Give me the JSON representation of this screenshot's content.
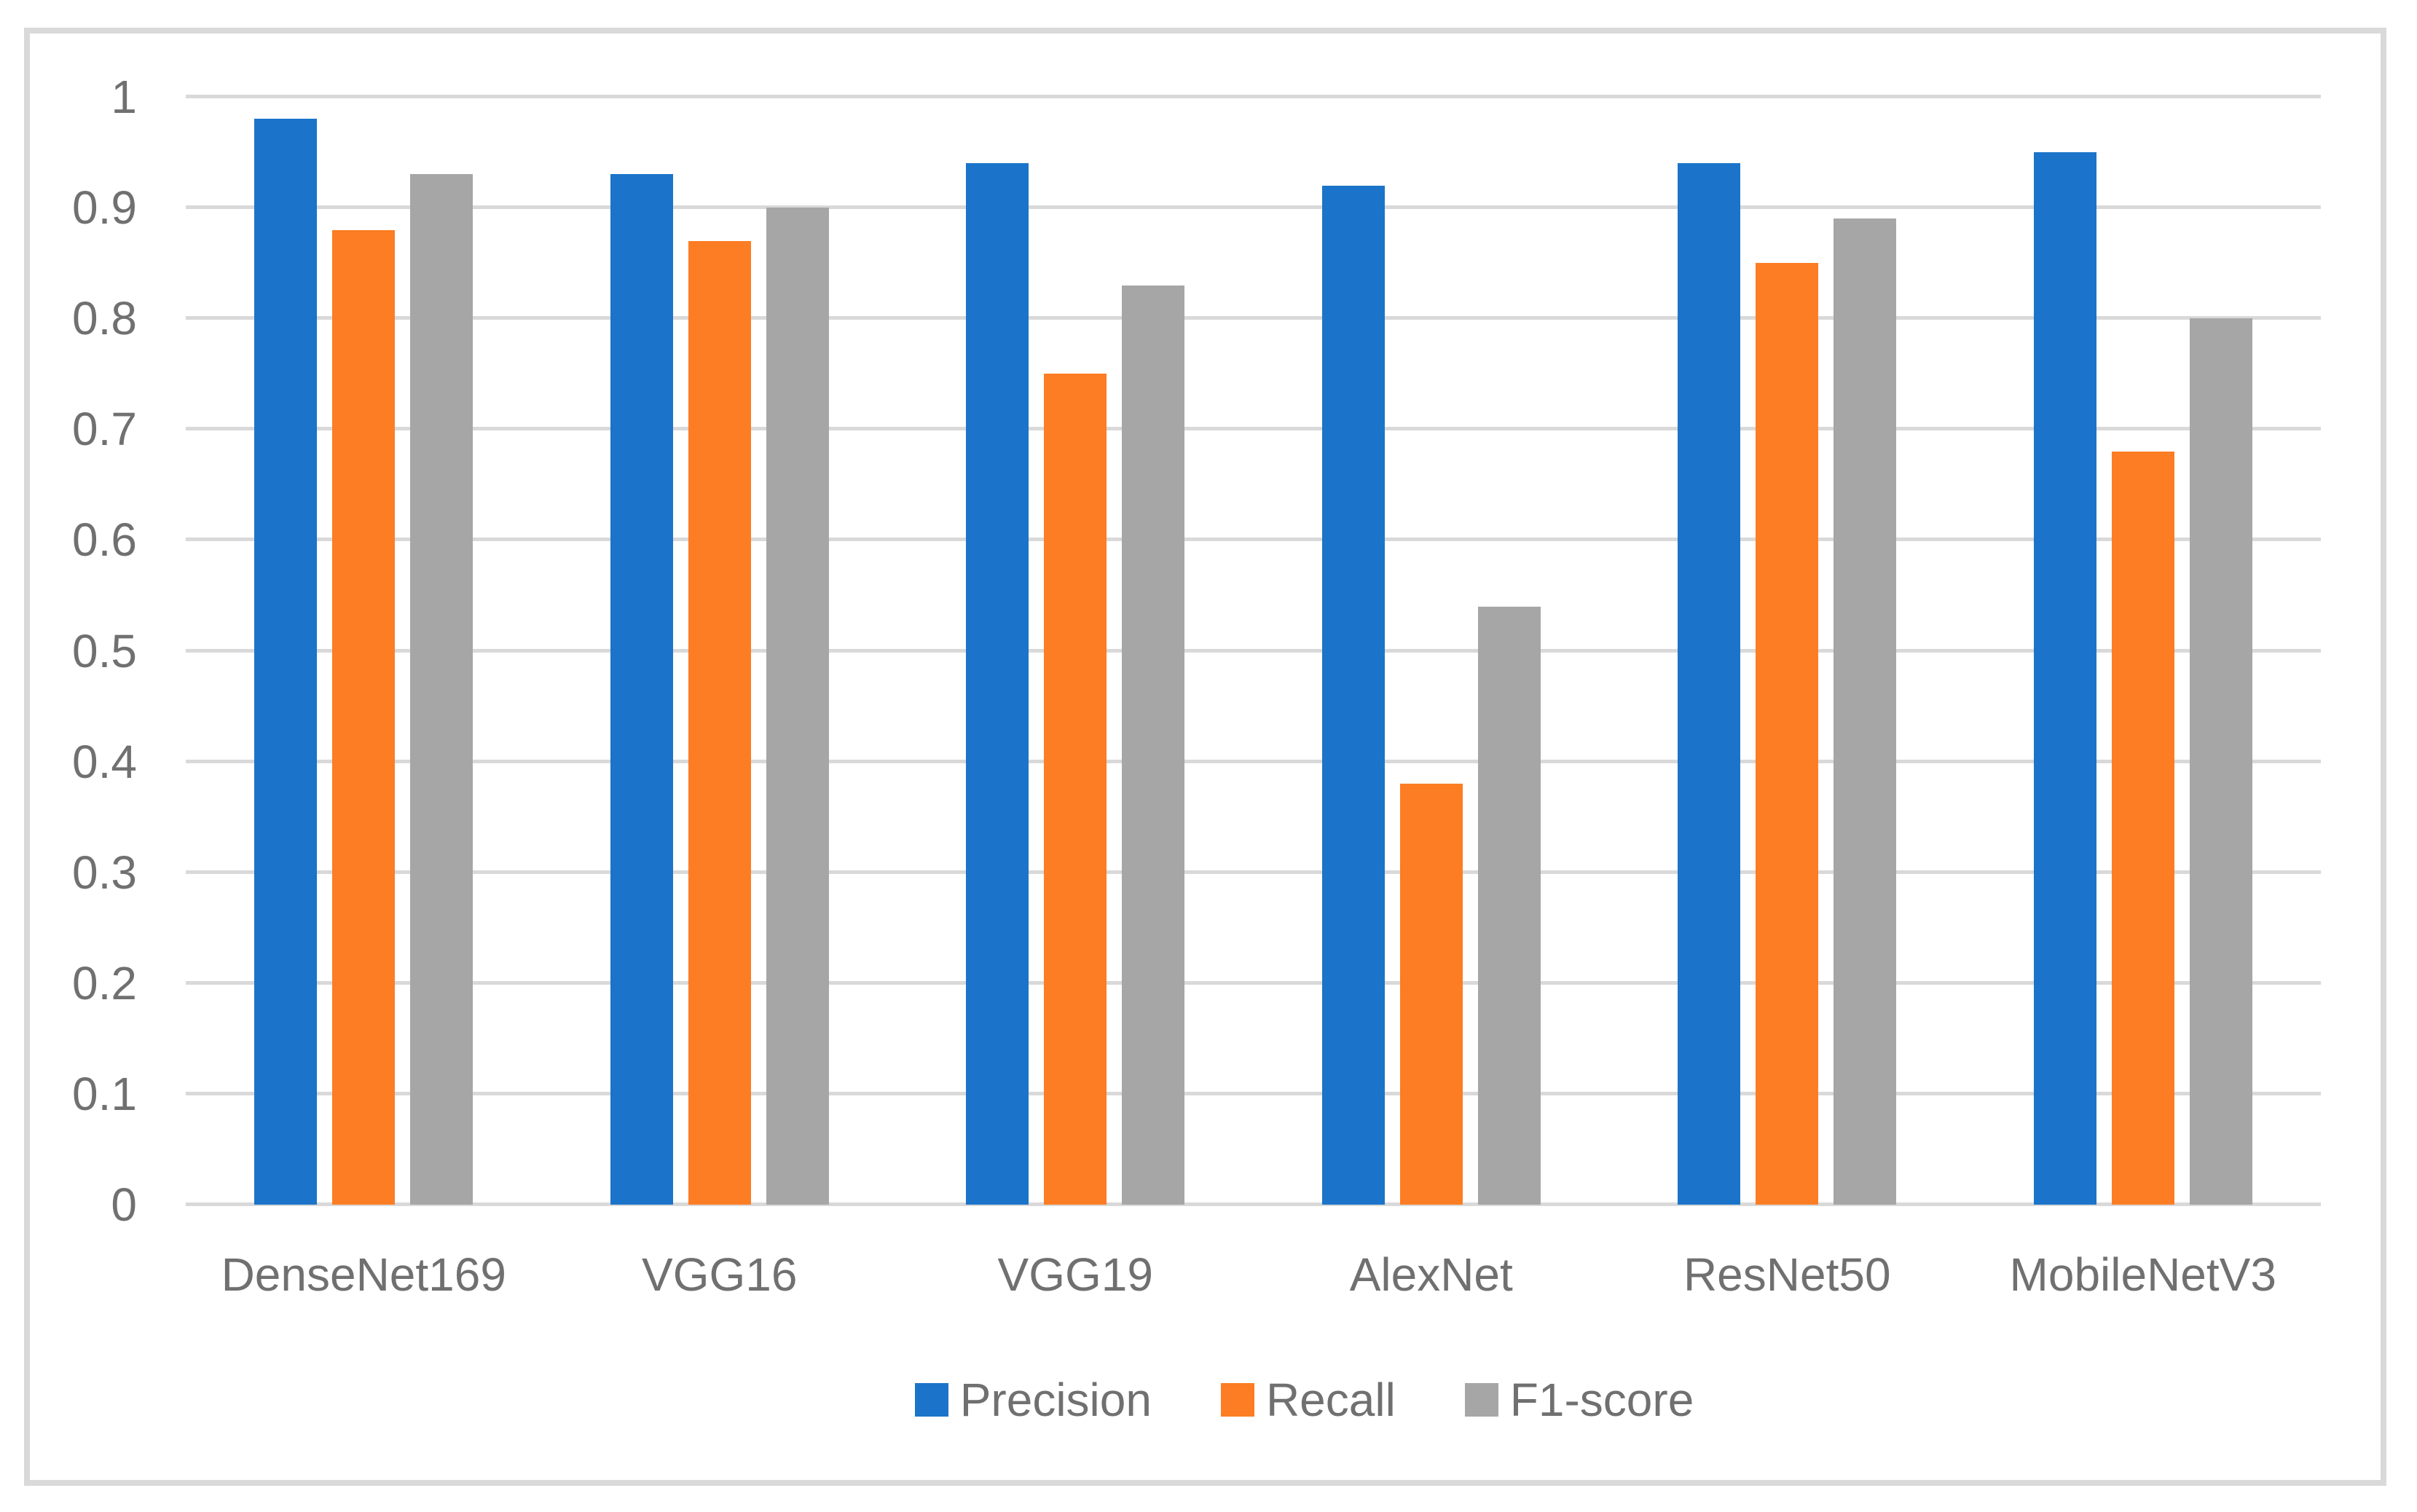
{
  "chart_data": {
    "type": "bar",
    "title": "",
    "categories": [
      "DenseNet169",
      "VGG16",
      "VGG19",
      "AlexNet",
      "ResNet50",
      "MobileNetV3"
    ],
    "series": [
      {
        "name": "Precision",
        "color": "#1b74c9",
        "values": [
          0.98,
          0.93,
          0.94,
          0.92,
          0.94,
          0.95
        ]
      },
      {
        "name": "Recall",
        "color": "#fc7d23",
        "values": [
          0.88,
          0.87,
          0.75,
          0.38,
          0.85,
          0.68
        ]
      },
      {
        "name": "F1-score",
        "color": "#a6a6a6",
        "values": [
          0.93,
          0.9,
          0.83,
          0.54,
          0.89,
          0.8
        ]
      }
    ],
    "xlabel": "",
    "ylabel": "",
    "ylim": [
      0,
      1
    ],
    "y_ticks": [
      "1",
      "0.9",
      "0.8",
      "0.7",
      "0.6",
      "0.5",
      "0.4",
      "0.3",
      "0.2",
      "0.1",
      "0"
    ],
    "y_tick_values": [
      1,
      0.9,
      0.8,
      0.7,
      0.6,
      0.5,
      0.4,
      0.3,
      0.2,
      0.1,
      0
    ],
    "grid": "horizontal",
    "legend_position": "bottom-center"
  },
  "style": {
    "frame_border_color": "#d9d9d9",
    "gridline_color": "#d9d9d9",
    "axis_text_color": "#707070",
    "background_color": "#ffffff"
  }
}
